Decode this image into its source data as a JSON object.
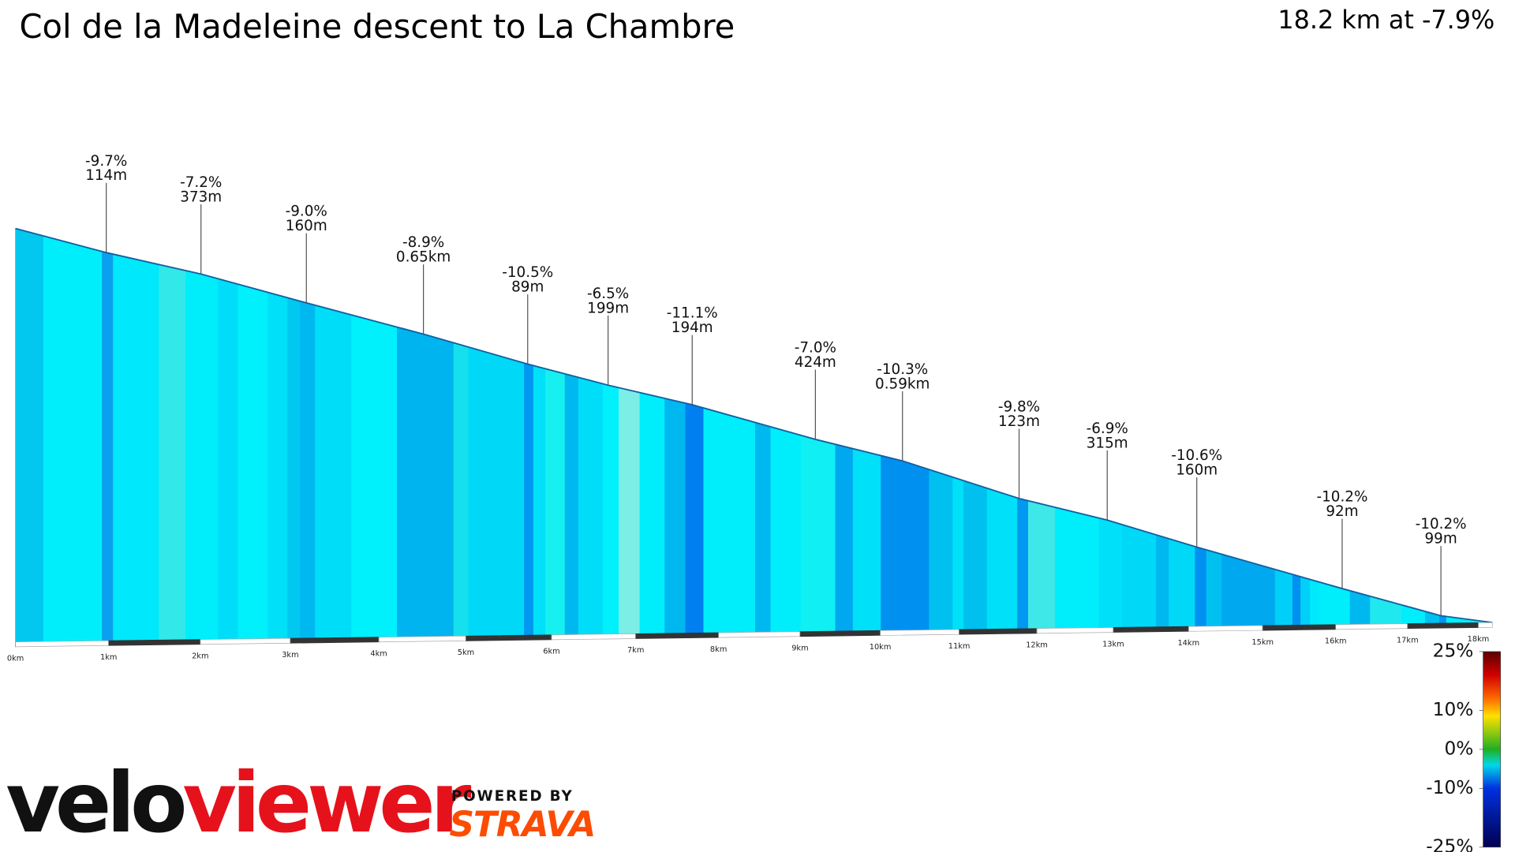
{
  "chart_data": {
    "type": "area",
    "title": "Col de la Madeleine descent to La Chambre",
    "subtitle": "18.2 km at -7.9%",
    "x": [
      0,
      0.974,
      2.008,
      3.18,
      4.51,
      5.72,
      6.67,
      7.68,
      9.19,
      10.28,
      11.77,
      12.92,
      14.11,
      16.09,
      17.47,
      18.2
    ],
    "values": [
      1993,
      1905,
      1826,
      1721,
      1607,
      1498,
      1421,
      1349,
      1223,
      1144,
      1008,
      929,
      831,
      680,
      581,
      555
    ],
    "xlim": [
      0,
      18.2
    ],
    "ylim": [
      555,
      1993
    ],
    "xticks": [
      {
        "value": 0,
        "label": "0km"
      },
      {
        "value": 1,
        "label": "1km"
      },
      {
        "value": 2,
        "label": "2km"
      },
      {
        "value": 3,
        "label": "3km"
      },
      {
        "value": 4,
        "label": "4km"
      },
      {
        "value": 5,
        "label": "5km"
      },
      {
        "value": 6,
        "label": "6km"
      },
      {
        "value": 7,
        "label": "7km"
      },
      {
        "value": 8,
        "label": "8km"
      },
      {
        "value": 9,
        "label": "9km"
      },
      {
        "value": 10,
        "label": "10km"
      },
      {
        "value": 11,
        "label": "11km"
      },
      {
        "value": 12,
        "label": "12km"
      },
      {
        "value": 13,
        "label": "13km"
      },
      {
        "value": 14,
        "label": "14km"
      },
      {
        "value": 15,
        "label": "15km"
      },
      {
        "value": 16,
        "label": "16km"
      },
      {
        "value": 17,
        "label": "17km"
      },
      {
        "value": 18,
        "label": "18km"
      }
    ],
    "annotations": [
      {
        "x": 0.974,
        "label": "-9.7%",
        "sublabel": "114m"
      },
      {
        "x": 2.008,
        "label": "-7.2%",
        "sublabel": "373m"
      },
      {
        "x": 3.18,
        "label": "-9.0%",
        "sublabel": "160m"
      },
      {
        "x": 4.51,
        "label": "-8.9%",
        "sublabel": "0.65km"
      },
      {
        "x": 5.72,
        "label": "-10.5%",
        "sublabel": "89m"
      },
      {
        "x": 6.67,
        "label": "-6.5%",
        "sublabel": "199m"
      },
      {
        "x": 7.68,
        "label": "-11.1%",
        "sublabel": "194m"
      },
      {
        "x": 9.19,
        "label": "-7.0%",
        "sublabel": "424m"
      },
      {
        "x": 10.28,
        "label": "-10.3%",
        "sublabel": "0.59km"
      },
      {
        "x": 11.77,
        "label": "-9.8%",
        "sublabel": "123m"
      },
      {
        "x": 12.92,
        "label": "-6.9%",
        "sublabel": "315m"
      },
      {
        "x": 14.11,
        "label": "-10.6%",
        "sublabel": "160m"
      },
      {
        "x": 16.09,
        "label": "-10.2%",
        "sublabel": "92m"
      },
      {
        "x": 17.47,
        "label": "-10.2%",
        "sublabel": "99m"
      }
    ],
    "segments": {
      "edges": [
        0,
        0.3,
        0.93,
        1.05,
        1.55,
        1.84,
        2.2,
        2.42,
        2.75,
        2.97,
        3.11,
        3.28,
        3.69,
        4.21,
        4.86,
        5.03,
        5.68,
        5.79,
        5.93,
        6.16,
        6.32,
        6.61,
        6.8,
        7.05,
        7.35,
        7.6,
        7.82,
        8.45,
        8.64,
        9.01,
        9.44,
        9.66,
        10.01,
        10.62,
        10.92,
        11.06,
        11.36,
        11.75,
        11.89,
        12.24,
        12.81,
        13.12,
        13.57,
        13.74,
        14.09,
        14.24,
        14.45,
        15.17,
        15.41,
        15.52,
        15.65,
        15.78,
        16.2,
        16.48,
        16.92,
        17.25,
        17.45,
        17.55,
        18.2
      ],
      "colors": [
        "#02c8ef",
        "#00eefc",
        "#0aa0f0",
        "#00e8fc",
        "#33e8e8",
        "#00eefc",
        "#00ddf8",
        "#00f0fc",
        "#00e0f8",
        "#00c8f0",
        "#00b8f0",
        "#00ddf8",
        "#00f0fc",
        "#00b4f0",
        "#16e0ee",
        "#00d8f8",
        "#0098f0",
        "#00e0f8",
        "#16f0f0",
        "#00b8f0",
        "#00ddf8",
        "#00f0fc",
        "#7ceee6",
        "#00eefc",
        "#00b8f0",
        "#0080f0",
        "#00eefc",
        "#00b8f0",
        "#00eefc",
        "#10f0f4",
        "#00a8f0",
        "#00e0f8",
        "#0090f0",
        "#00c0f0",
        "#00e0f8",
        "#00c0f0",
        "#00e0f8",
        "#0098f0",
        "#3ee8e8",
        "#00eefc",
        "#00e0f8",
        "#00d8f8",
        "#00b8f0",
        "#00d8f8",
        "#0090f0",
        "#00c0f0",
        "#00a8f0",
        "#00d0f8",
        "#0090f0",
        "#00d0f8",
        "#00e8fc",
        "#00eefc",
        "#00b8f0",
        "#20e8ee",
        "#00eefc",
        "#00c0f0",
        "#0098f0",
        "#00f0fc"
      ]
    },
    "colorbar": {
      "lim": [
        -25,
        25
      ],
      "ticks": [
        {
          "value": 25,
          "label": "25%"
        },
        {
          "value": 10,
          "label": "10%"
        },
        {
          "value": 0,
          "label": "0%"
        },
        {
          "value": -10,
          "label": "-10%"
        },
        {
          "value": -25,
          "label": "-25%"
        }
      ]
    }
  },
  "branding": {
    "velo": "velo",
    "viewer": "viewer",
    "powered": "POWERED BY",
    "strava": "STRAVA"
  }
}
